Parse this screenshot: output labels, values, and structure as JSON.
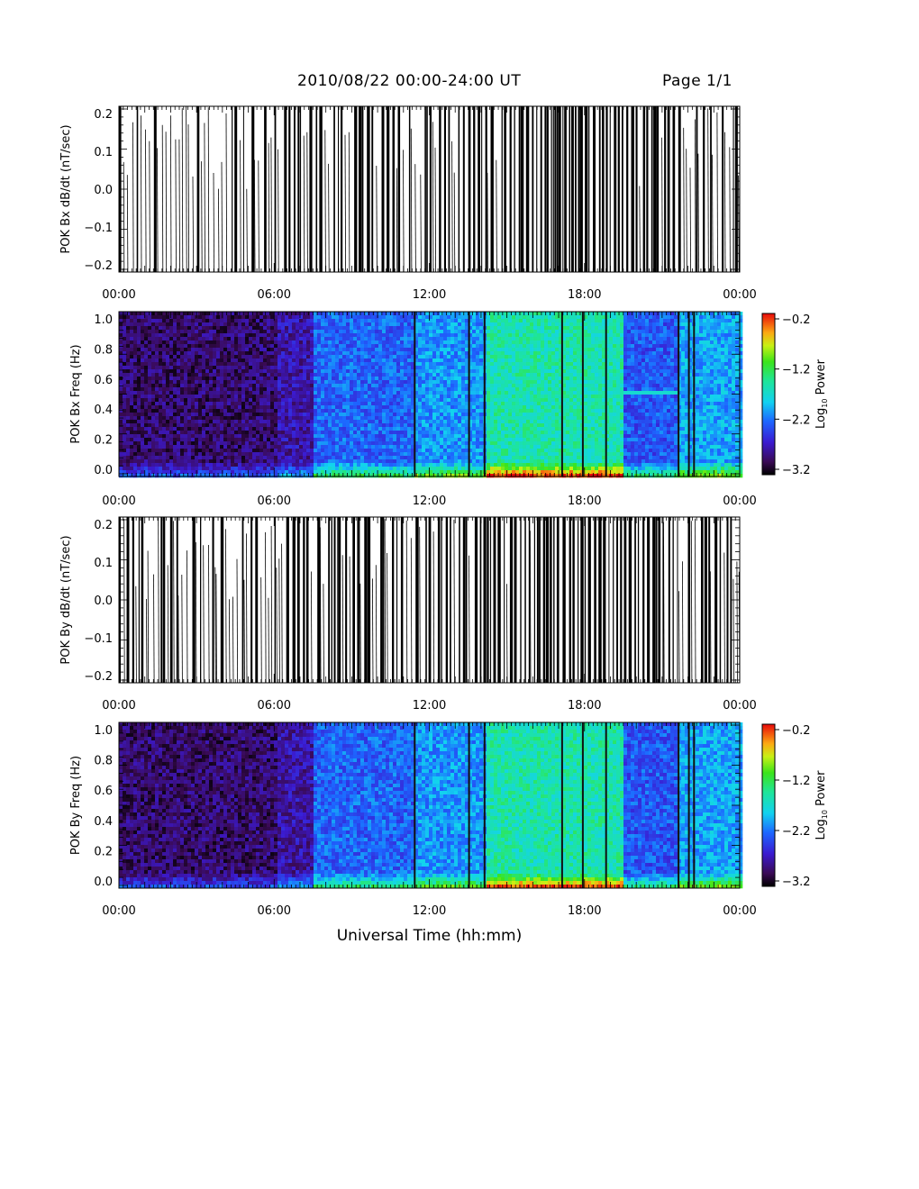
{
  "header": {
    "title": "2010/08/22  00:00-24:00 UT",
    "page": "Page 1/1"
  },
  "chart_data": [
    {
      "type": "line",
      "title": "",
      "ylabel": "POK Bx dB/dt (nT/sec)",
      "xlabel": "",
      "xlim": [
        "00:00",
        "24:00"
      ],
      "ylim": [
        -0.2,
        0.2
      ],
      "x_ticks": [
        "00:00",
        "06:00",
        "12:00",
        "18:00",
        "00:00"
      ],
      "y_ticks": [
        "0.2",
        "0.1",
        "0.0",
        "-0.1",
        "-0.2"
      ],
      "series": [
        {
          "values": []
        }
      ]
    },
    {
      "type": "heatmap",
      "title": "",
      "ylabel": "POK Bx Freq (Hz)",
      "xlabel": "",
      "xlim": [
        "00:00",
        "24:00"
      ],
      "ylim": [
        0.0,
        1.0
      ],
      "x_ticks": [
        "00:00",
        "06:00",
        "12:00",
        "18:00",
        "00:00"
      ],
      "y_ticks": [
        "1.0",
        "0.8",
        "0.6",
        "0.4",
        "0.2",
        "0.0"
      ],
      "colorbar": {
        "label": "Log",
        "label_sub": "10",
        "label_suffix": " Power",
        "ticks": [
          "-0.2",
          "-1.2",
          "-2.2",
          "-3.2"
        ],
        "range": [
          -3.2,
          -0.2
        ]
      }
    },
    {
      "type": "line",
      "title": "",
      "ylabel": "POK By dB/dt (nT/sec)",
      "xlabel": "",
      "xlim": [
        "00:00",
        "24:00"
      ],
      "ylim": [
        -0.2,
        0.2
      ],
      "x_ticks": [
        "00:00",
        "06:00",
        "12:00",
        "18:00",
        "00:00"
      ],
      "y_ticks": [
        "0.2",
        "0.1",
        "0.0",
        "-0.1",
        "-0.2"
      ],
      "series": [
        {
          "values": []
        }
      ]
    },
    {
      "type": "heatmap",
      "title": "",
      "ylabel": "POK By Freq (Hz)",
      "xlabel": "Universal Time (hh:mm)",
      "xlim": [
        "00:00",
        "24:00"
      ],
      "ylim": [
        0.0,
        1.0
      ],
      "x_ticks": [
        "00:00",
        "06:00",
        "12:00",
        "18:00",
        "00:00"
      ],
      "y_ticks": [
        "1.0",
        "0.8",
        "0.6",
        "0.4",
        "0.2",
        "0.0"
      ],
      "colorbar": {
        "label": "Log",
        "label_sub": "10",
        "label_suffix": " Power",
        "ticks": [
          "-0.2",
          "-1.2",
          "-2.2",
          "-3.2"
        ],
        "range": [
          -3.2,
          -0.2
        ]
      }
    }
  ]
}
